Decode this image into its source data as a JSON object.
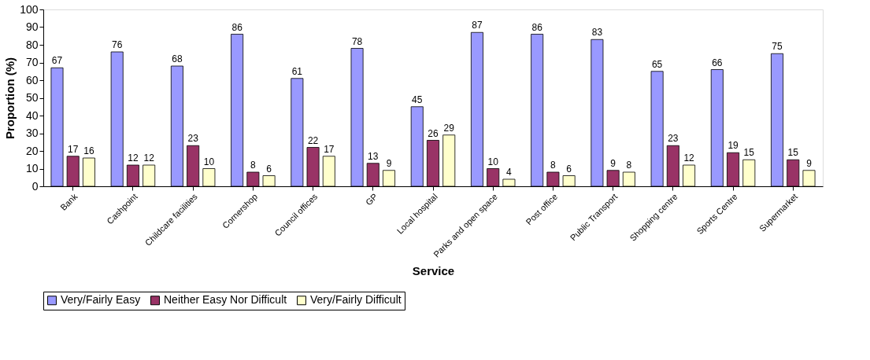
{
  "chart_data": {
    "type": "bar",
    "xlabel": "Service",
    "ylabel": "Proportion (%)",
    "categories": [
      "Bank",
      "Cashpoint",
      "Childcare facilities",
      "Cornershop",
      "Council offices",
      "GP",
      "Local hospital",
      "Parks and open space",
      "Post office",
      "Public Transport",
      "Shopping centre",
      "Sports Centre",
      "Supermarket"
    ],
    "series": [
      {
        "name": "Very/Fairly Easy",
        "color": "#9999ff",
        "values": [
          67,
          76,
          68,
          86,
          61,
          78,
          45,
          87,
          86,
          83,
          65,
          66,
          75
        ]
      },
      {
        "name": "Neither Easy Nor Difficult",
        "color": "#993366",
        "values": [
          17,
          12,
          23,
          8,
          22,
          13,
          26,
          10,
          8,
          9,
          23,
          19,
          15
        ]
      },
      {
        "name": "Very/Fairly Difficult",
        "color": "#ffffcc",
        "values": [
          16,
          12,
          10,
          6,
          17,
          9,
          29,
          4,
          6,
          8,
          12,
          15,
          9
        ]
      }
    ],
    "ylim": [
      0,
      100
    ],
    "yticks": [
      0,
      10,
      20,
      30,
      40,
      50,
      60,
      70,
      80,
      90,
      100
    ],
    "data_labels": true,
    "legend": "bottom",
    "grid": false
  }
}
